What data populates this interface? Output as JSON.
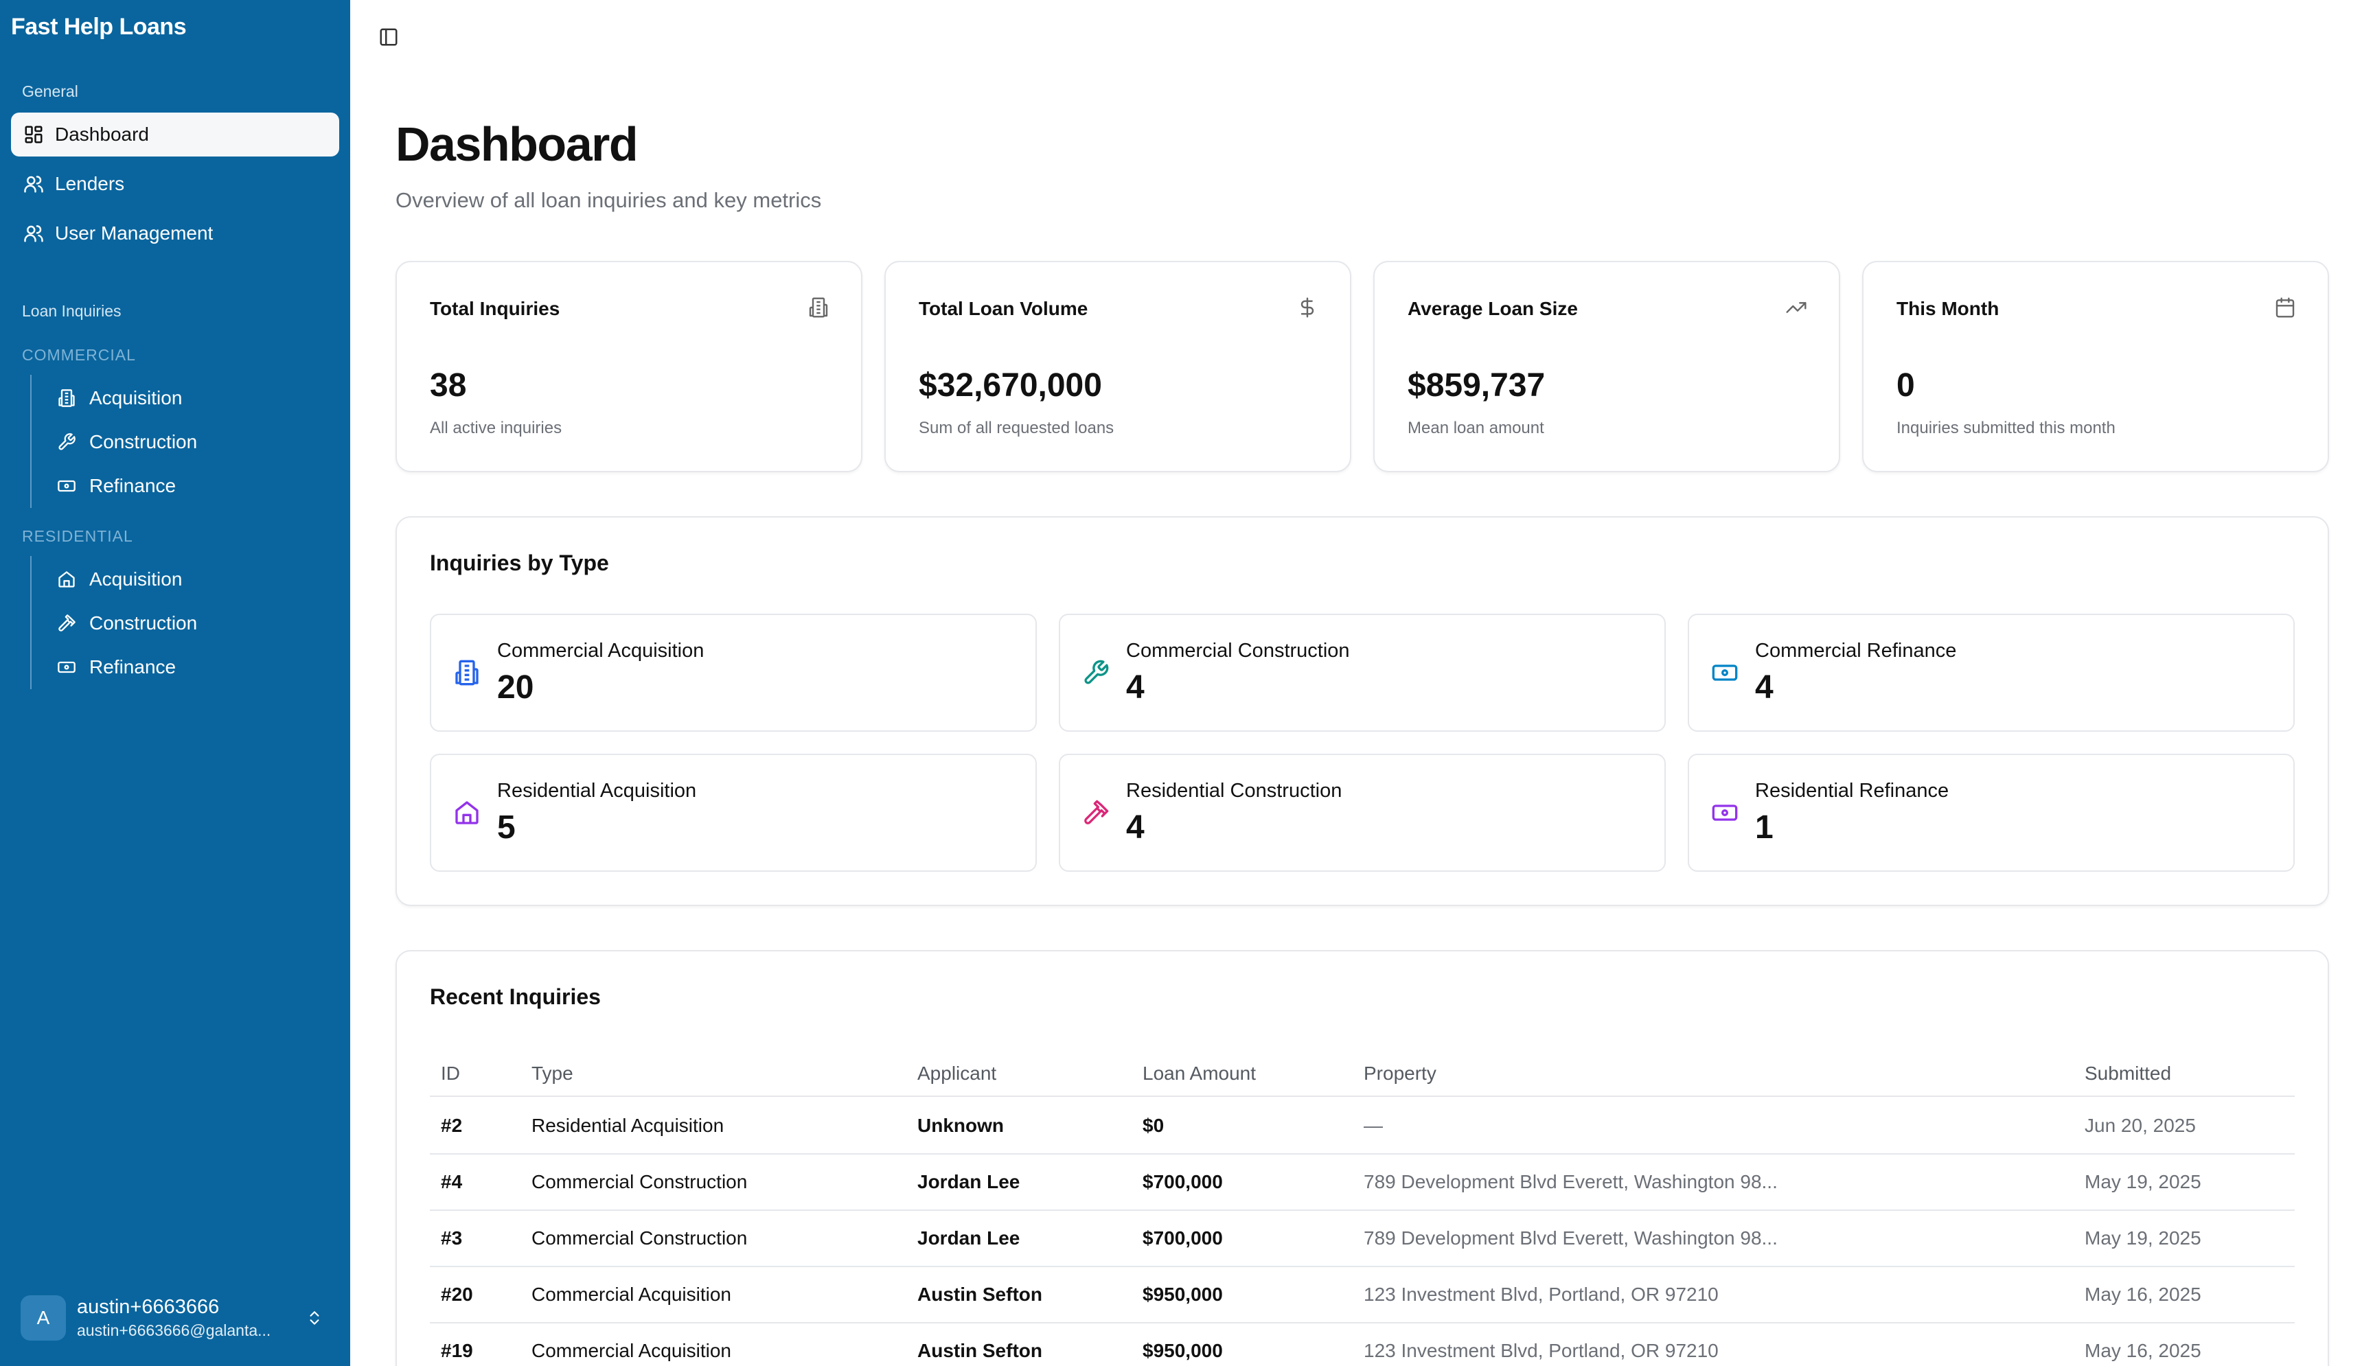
{
  "app": {
    "name": "Fast Help Loans"
  },
  "sidebar": {
    "general_label": "General",
    "nav": [
      {
        "label": "Dashboard",
        "icon": "dashboard-grid-icon",
        "active": true
      },
      {
        "label": "Lenders",
        "icon": "users-icon"
      },
      {
        "label": "User Management",
        "icon": "users-icon"
      }
    ],
    "loan_inquiries_label": "Loan Inquiries",
    "commercial": {
      "label": "COMMERCIAL",
      "items": [
        {
          "label": "Acquisition",
          "icon": "building-icon"
        },
        {
          "label": "Construction",
          "icon": "wrench-icon"
        },
        {
          "label": "Refinance",
          "icon": "banknote-icon"
        }
      ]
    },
    "residential": {
      "label": "RESIDENTIAL",
      "items": [
        {
          "label": "Acquisition",
          "icon": "house-icon"
        },
        {
          "label": "Construction",
          "icon": "hammer-icon"
        },
        {
          "label": "Refinance",
          "icon": "banknote-icon"
        }
      ]
    },
    "user": {
      "initial": "A",
      "name": "austin+6663666",
      "email": "austin+6663666@galanta..."
    }
  },
  "header": {
    "title": "Dashboard",
    "subtitle": "Overview of all loan inquiries and key metrics"
  },
  "stats": [
    {
      "title": "Total Inquiries",
      "value": "38",
      "desc": "All active inquiries",
      "icon": "building-icon"
    },
    {
      "title": "Total Loan Volume",
      "value": "$32,670,000",
      "desc": "Sum of all requested loans",
      "icon": "dollar-icon"
    },
    {
      "title": "Average Loan Size",
      "value": "$859,737",
      "desc": "Mean loan amount",
      "icon": "trending-up-icon"
    },
    {
      "title": "This Month",
      "value": "0",
      "desc": "Inquiries submitted this month",
      "icon": "calendar-icon"
    }
  ],
  "by_type": {
    "title": "Inquiries by Type",
    "items": [
      {
        "label": "Commercial Acquisition",
        "count": "20",
        "icon": "building-icon",
        "color": "#2563eb"
      },
      {
        "label": "Commercial Construction",
        "count": "4",
        "icon": "wrench-icon",
        "color": "#0d9488"
      },
      {
        "label": "Commercial Refinance",
        "count": "4",
        "icon": "banknote-icon",
        "color": "#0284c7"
      },
      {
        "label": "Residential Acquisition",
        "count": "5",
        "icon": "house-icon",
        "color": "#9333ea"
      },
      {
        "label": "Residential Construction",
        "count": "4",
        "icon": "hammer-icon",
        "color": "#db2777"
      },
      {
        "label": "Residential Refinance",
        "count": "1",
        "icon": "banknote-icon",
        "color": "#9333ea"
      }
    ]
  },
  "recent": {
    "title": "Recent Inquiries",
    "columns": [
      "ID",
      "Type",
      "Applicant",
      "Loan Amount",
      "Property",
      "Submitted"
    ],
    "rows": [
      {
        "id": "#2",
        "type": "Residential Acquisition",
        "applicant": "Unknown",
        "amount": "$0",
        "property": "—",
        "submitted": "Jun 20, 2025"
      },
      {
        "id": "#4",
        "type": "Commercial Construction",
        "applicant": "Jordan Lee",
        "amount": "$700,000",
        "property": "789 Development Blvd Everett, Washington 98...",
        "submitted": "May 19, 2025"
      },
      {
        "id": "#3",
        "type": "Commercial Construction",
        "applicant": "Jordan Lee",
        "amount": "$700,000",
        "property": "789 Development Blvd Everett, Washington 98...",
        "submitted": "May 19, 2025"
      },
      {
        "id": "#20",
        "type": "Commercial Acquisition",
        "applicant": "Austin Sefton",
        "amount": "$950,000",
        "property": "123 Investment Blvd, Portland, OR 97210",
        "submitted": "May 16, 2025"
      },
      {
        "id": "#19",
        "type": "Commercial Acquisition",
        "applicant": "Austin Sefton",
        "amount": "$950,000",
        "property": "123 Investment Blvd, Portland, OR 97210",
        "submitted": "May 16, 2025"
      }
    ]
  }
}
